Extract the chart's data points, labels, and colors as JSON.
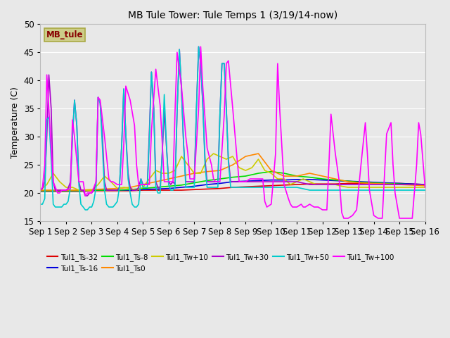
{
  "title": "MB Tule Tower: Tule Temps 1 (3/19/14-now)",
  "ylabel": "Temperature (C)",
  "ylim": [
    15,
    50
  ],
  "yticks": [
    15,
    20,
    25,
    30,
    35,
    40,
    45,
    50
  ],
  "xlim": [
    0,
    15
  ],
  "xtick_labels": [
    "Sep 1",
    "Sep 2",
    "Sep 3",
    "Sep 4",
    "Sep 5",
    "Sep 6",
    "Sep 7",
    "Sep 8",
    "Sep 9",
    "Sep 10",
    "Sep 11",
    "Sep 12",
    "Sep 13",
    "Sep 14",
    "Sep 15",
    "Sep 16"
  ],
  "xtick_positions": [
    0,
    1,
    2,
    3,
    4,
    5,
    6,
    7,
    8,
    9,
    10,
    11,
    12,
    13,
    14,
    15
  ],
  "background_color": "#e8e8e8",
  "plot_bg_color": "#e8e8e8",
  "grid_color": "#ffffff",
  "series_order": [
    "Tul1_Ts-32",
    "Tul1_Ts-16",
    "Tul1_Ts-8",
    "Tul1_Ts0",
    "Tul1_Tw+10",
    "Tul1_Tw+30",
    "Tul1_Tw+50",
    "Tul1_Tw+100"
  ],
  "series": {
    "Tul1_Ts-32": {
      "color": "#dd0000",
      "linewidth": 1.2,
      "data_x": [
        0,
        0.5,
        1,
        1.5,
        2,
        2.5,
        3,
        3.5,
        4,
        4.5,
        5,
        5.5,
        6,
        6.5,
        7,
        7.5,
        8,
        8.5,
        9,
        9.5,
        10,
        10.5,
        11,
        11.5,
        12,
        12.5,
        13,
        13.5,
        14,
        14.5,
        15
      ],
      "data_y": [
        20.3,
        20.3,
        20.3,
        20.3,
        20.4,
        20.4,
        20.4,
        20.4,
        20.5,
        20.5,
        20.5,
        20.5,
        20.6,
        20.7,
        20.8,
        21.0,
        21.1,
        21.2,
        21.3,
        21.4,
        21.5,
        21.6,
        21.6,
        21.6,
        21.7,
        21.7,
        21.7,
        21.7,
        21.7,
        21.6,
        21.5
      ]
    },
    "Tul1_Ts-16": {
      "color": "#0000dd",
      "linewidth": 1.2,
      "data_x": [
        0,
        0.5,
        1,
        1.5,
        2,
        2.5,
        3,
        3.5,
        4,
        4.5,
        5,
        5.5,
        6,
        6.5,
        7,
        7.5,
        8,
        8.5,
        9,
        9.5,
        10,
        10.5,
        11,
        11.5,
        12,
        12.5,
        13,
        13.5,
        14,
        14.5,
        15
      ],
      "data_y": [
        20.4,
        20.4,
        20.4,
        20.4,
        20.5,
        20.5,
        20.5,
        20.5,
        20.6,
        20.7,
        20.8,
        21.0,
        21.2,
        21.5,
        21.7,
        22.0,
        22.1,
        22.2,
        22.3,
        22.3,
        22.4,
        22.4,
        22.3,
        22.2,
        22.1,
        22.0,
        21.9,
        21.8,
        21.7,
        21.6,
        21.5
      ]
    },
    "Tul1_Ts-8": {
      "color": "#00dd00",
      "linewidth": 1.2,
      "data_x": [
        0,
        0.5,
        1,
        1.5,
        2,
        2.5,
        3,
        3.5,
        4,
        4.5,
        5,
        5.5,
        6,
        6.5,
        7,
        7.5,
        8,
        8.5,
        9,
        9.5,
        10,
        10.5,
        11,
        11.5,
        12,
        12.5,
        13,
        13.5,
        14,
        14.5,
        15
      ],
      "data_y": [
        20.4,
        20.4,
        20.4,
        20.4,
        20.5,
        20.5,
        20.5,
        20.6,
        20.8,
        21.0,
        21.2,
        21.4,
        21.8,
        22.2,
        22.5,
        22.8,
        23.0,
        23.5,
        23.8,
        23.5,
        23.0,
        22.8,
        22.5,
        22.3,
        22.1,
        21.9,
        21.8,
        21.7,
        21.6,
        21.5,
        21.4
      ]
    },
    "Tul1_Ts0": {
      "color": "#ff8800",
      "linewidth": 1.2,
      "data_x": [
        0,
        0.5,
        1,
        1.5,
        2,
        2.5,
        3,
        3.5,
        4,
        4.5,
        5,
        5.5,
        6,
        6.5,
        7,
        7.5,
        8,
        8.5,
        9,
        9.5,
        10,
        10.5,
        11,
        11.5,
        12,
        12.5,
        13,
        13.5,
        14,
        14.5,
        15
      ],
      "data_y": [
        20.5,
        20.5,
        20.5,
        20.5,
        20.6,
        20.7,
        20.8,
        21.0,
        21.5,
        22.0,
        22.5,
        23.0,
        23.5,
        23.8,
        24.0,
        25.0,
        26.5,
        27.0,
        24.0,
        23.0,
        23.0,
        23.5,
        23.0,
        22.5,
        22.0,
        21.8,
        21.7,
        21.6,
        21.5,
        21.4,
        21.3
      ]
    },
    "Tul1_Tw+10": {
      "color": "#cccc00",
      "linewidth": 1.2,
      "data_x": [
        0,
        0.25,
        0.5,
        0.75,
        1,
        1.25,
        1.5,
        1.75,
        2,
        2.25,
        2.5,
        2.75,
        3,
        3.25,
        3.5,
        3.75,
        4,
        4.25,
        4.5,
        4.75,
        5,
        5.25,
        5.5,
        5.75,
        6,
        6.25,
        6.5,
        6.75,
        7,
        7.25,
        7.5,
        7.75,
        8,
        8.25,
        8.5,
        8.75,
        9,
        9.25,
        9.5,
        9.75,
        10,
        10.25,
        10.5,
        10.75,
        11,
        11.25,
        11.5,
        11.75,
        12,
        12.25,
        12.5,
        12.75,
        13,
        13.25,
        13.5,
        13.75,
        14,
        14.25,
        14.5,
        14.75,
        15
      ],
      "data_y": [
        20.5,
        21.5,
        23.5,
        22.0,
        21.0,
        21.0,
        20.5,
        20.5,
        20.5,
        21.5,
        23.0,
        22.0,
        20.8,
        21.0,
        20.8,
        20.5,
        21.0,
        22.5,
        24.0,
        23.5,
        23.5,
        24.0,
        26.5,
        25.0,
        23.5,
        23.5,
        26.0,
        27.0,
        26.5,
        26.0,
        26.5,
        24.5,
        24.0,
        24.5,
        26.0,
        24.0,
        23.5,
        22.5,
        22.5,
        21.5,
        22.0,
        22.5,
        22.0,
        21.5,
        21.5,
        21.5,
        21.5,
        21.2,
        21.0,
        21.0,
        21.0,
        21.0,
        21.0,
        21.0,
        21.0,
        21.0,
        21.0,
        21.0,
        21.0,
        21.0,
        21.0
      ]
    },
    "Tul1_Tw+30": {
      "color": "#aa00cc",
      "linewidth": 1.2,
      "data_x": [
        0,
        0.08,
        0.17,
        0.25,
        0.33,
        0.42,
        0.5,
        0.58,
        0.67,
        0.75,
        0.83,
        0.92,
        1,
        1.08,
        1.17,
        1.25,
        1.33,
        1.42,
        1.5,
        1.58,
        1.67,
        1.75,
        1.83,
        1.92,
        2,
        2.08,
        2.17,
        2.25,
        2.33,
        2.42,
        2.5,
        2.58,
        2.67,
        2.75,
        2.83,
        2.92,
        3,
        3.08,
        3.17,
        3.25,
        3.33,
        3.42,
        3.5,
        3.58,
        3.67,
        3.75,
        3.83,
        3.92,
        4,
        4.08,
        4.17,
        4.25,
        4.33,
        4.42,
        4.5,
        4.58,
        4.67,
        4.75,
        4.83,
        4.92,
        5,
        5.08,
        5.17,
        5.25,
        5.33,
        5.42,
        5.5,
        5.58,
        5.67,
        5.75,
        5.83,
        5.92,
        6,
        6.08,
        6.17,
        6.25,
        6.33,
        6.42,
        6.5,
        6.58,
        6.67,
        6.75,
        6.83,
        6.92,
        7,
        7.08,
        7.17,
        7.25,
        7.33,
        7.42,
        7.5,
        7.58,
        7.67,
        7.75,
        7.83,
        7.92,
        8,
        8.08,
        8.17,
        8.25,
        8.33,
        8.42,
        8.5,
        8.58,
        8.67,
        8.75,
        8.83,
        8.92,
        9,
        9.08,
        9.17,
        9.25,
        9.33,
        9.42,
        9.5,
        9.58,
        9.67,
        9.75,
        9.83,
        9.92,
        10,
        10.5,
        11,
        11.5,
        12,
        12.5,
        13,
        13.5,
        14,
        14.5,
        15
      ],
      "data_y": [
        20.5,
        20.8,
        22.0,
        30.0,
        41.0,
        35.0,
        22.0,
        20.5,
        20.5,
        20.5,
        20.5,
        20.5,
        20.5,
        20.8,
        22.0,
        30.0,
        36.5,
        32.0,
        22.0,
        20.5,
        20.5,
        19.5,
        19.5,
        20.0,
        20.0,
        20.5,
        22.0,
        37.0,
        36.0,
        30.0,
        22.0,
        20.5,
        20.5,
        20.5,
        20.5,
        20.5,
        20.5,
        21.0,
        28.5,
        38.5,
        30.5,
        23.5,
        21.0,
        20.5,
        20.5,
        20.5,
        21.0,
        22.5,
        21.5,
        21.5,
        21.5,
        31.0,
        41.5,
        35.0,
        22.0,
        21.0,
        21.0,
        27.0,
        34.5,
        28.0,
        22.0,
        21.5,
        22.0,
        21.5,
        34.5,
        45.5,
        38.5,
        29.0,
        22.0,
        22.0,
        22.0,
        22.0,
        22.0,
        34.5,
        46.0,
        43.0,
        36.0,
        26.0,
        22.0,
        22.0,
        22.0,
        22.0,
        22.0,
        22.0,
        34.0,
        43.0,
        43.0,
        35.0,
        26.0,
        22.0,
        22.0,
        22.0,
        22.0,
        22.0,
        22.0,
        22.0,
        22.0,
        22.0,
        22.0,
        22.0,
        22.0,
        22.0,
        22.0,
        22.0,
        22.0,
        22.0,
        22.0,
        22.0,
        22.0,
        22.0,
        22.0,
        22.0,
        22.0,
        22.0,
        22.0,
        22.0,
        22.0,
        22.0,
        22.0,
        22.0,
        22.0,
        21.5,
        21.5,
        21.5,
        21.5,
        21.5,
        21.5,
        21.5,
        21.5,
        21.5,
        21.5
      ]
    },
    "Tul1_Tw+50": {
      "color": "#00cccc",
      "linewidth": 1.2,
      "data_x": [
        0,
        0.08,
        0.17,
        0.25,
        0.33,
        0.42,
        0.5,
        0.58,
        0.67,
        0.75,
        0.83,
        0.92,
        1,
        1.08,
        1.17,
        1.25,
        1.33,
        1.42,
        1.5,
        1.58,
        1.67,
        1.75,
        1.83,
        1.92,
        2,
        2.08,
        2.17,
        2.25,
        2.33,
        2.42,
        2.5,
        2.58,
        2.67,
        2.75,
        2.83,
        2.92,
        3,
        3.08,
        3.17,
        3.25,
        3.33,
        3.42,
        3.5,
        3.58,
        3.67,
        3.75,
        3.83,
        3.92,
        4,
        4.08,
        4.17,
        4.25,
        4.33,
        4.42,
        4.5,
        4.58,
        4.67,
        4.75,
        4.83,
        4.92,
        5,
        5.08,
        5.17,
        5.25,
        5.33,
        5.42,
        5.5,
        5.58,
        5.67,
        5.75,
        5.83,
        5.92,
        6,
        6.08,
        6.17,
        6.25,
        6.33,
        6.42,
        6.5,
        6.58,
        6.67,
        6.75,
        6.83,
        6.92,
        7,
        7.08,
        7.17,
        7.25,
        7.33,
        7.42,
        7.5,
        7.58,
        7.67,
        7.75,
        7.83,
        7.92,
        8,
        8.08,
        8.17,
        8.25,
        8.33,
        8.42,
        8.5,
        8.58,
        8.67,
        8.75,
        8.83,
        8.92,
        9,
        9.08,
        9.17,
        9.25,
        9.33,
        9.42,
        9.5,
        9.58,
        9.67,
        9.75,
        9.83,
        9.92,
        10,
        10.5,
        11,
        11.5,
        12,
        12.5,
        13,
        13.5,
        14,
        14.5,
        15
      ],
      "data_y": [
        18.0,
        18.0,
        19.0,
        33.0,
        33.5,
        26.0,
        18.0,
        17.5,
        17.5,
        17.5,
        17.5,
        18.0,
        18.0,
        18.5,
        21.0,
        30.0,
        36.5,
        32.0,
        21.5,
        18.0,
        17.5,
        17.0,
        17.0,
        17.5,
        17.5,
        18.5,
        21.0,
        37.0,
        36.0,
        28.0,
        20.5,
        18.0,
        17.5,
        17.5,
        17.5,
        18.0,
        18.5,
        21.0,
        28.5,
        38.5,
        30.5,
        22.5,
        20.0,
        18.0,
        17.5,
        17.5,
        18.0,
        22.5,
        21.0,
        21.0,
        21.0,
        30.0,
        41.5,
        35.0,
        21.0,
        20.0,
        20.0,
        27.0,
        37.5,
        28.0,
        21.5,
        20.5,
        20.5,
        21.0,
        34.5,
        45.5,
        38.5,
        29.0,
        21.0,
        21.0,
        21.0,
        21.0,
        21.0,
        34.5,
        46.0,
        43.0,
        36.0,
        25.0,
        21.0,
        21.0,
        21.0,
        21.0,
        21.0,
        21.0,
        34.0,
        43.0,
        43.0,
        35.0,
        25.5,
        21.0,
        21.0,
        21.0,
        21.0,
        21.0,
        21.0,
        21.0,
        21.0,
        21.0,
        21.0,
        21.0,
        21.0,
        21.0,
        21.0,
        21.0,
        21.0,
        21.0,
        21.0,
        21.0,
        21.0,
        21.0,
        21.0,
        21.0,
        21.0,
        21.0,
        21.0,
        21.0,
        21.0,
        21.0,
        21.0,
        21.0,
        21.0,
        20.5,
        20.5,
        20.5,
        20.5,
        20.5,
        20.5,
        20.5,
        20.5,
        20.5,
        20.5
      ]
    },
    "Tul1_Tw+100": {
      "color": "#ff00ff",
      "linewidth": 1.2,
      "data_x": [
        0,
        0.08,
        0.17,
        0.25,
        0.33,
        0.5,
        0.67,
        0.75,
        0.83,
        1.0,
        1.17,
        1.25,
        1.33,
        1.5,
        1.67,
        1.75,
        1.83,
        2.0,
        2.17,
        2.25,
        2.33,
        2.5,
        2.67,
        2.75,
        2.83,
        3.0,
        3.17,
        3.25,
        3.33,
        3.5,
        3.67,
        3.75,
        3.83,
        4.0,
        4.17,
        4.25,
        4.33,
        4.5,
        4.67,
        4.75,
        4.83,
        5.0,
        5.17,
        5.25,
        5.33,
        5.5,
        5.67,
        5.75,
        5.83,
        6.0,
        6.17,
        6.25,
        6.33,
        6.5,
        6.67,
        6.75,
        6.83,
        7.0,
        7.17,
        7.25,
        7.33,
        7.5,
        7.67,
        7.75,
        7.83,
        8.0,
        8.17,
        8.25,
        8.33,
        8.5,
        8.67,
        8.75,
        8.83,
        9.0,
        9.17,
        9.25,
        9.33,
        9.5,
        9.67,
        9.75,
        9.83,
        10.0,
        10.17,
        10.25,
        10.33,
        10.5,
        10.67,
        10.75,
        10.83,
        11.0,
        11.17,
        11.25,
        11.33,
        11.5,
        11.67,
        11.75,
        11.83,
        12.0,
        12.17,
        12.25,
        12.33,
        12.5,
        12.67,
        12.75,
        12.83,
        13.0,
        13.17,
        13.25,
        13.33,
        13.5,
        13.67,
        13.75,
        13.83,
        14.0,
        14.17,
        14.25,
        14.33,
        14.5,
        14.67,
        14.75,
        14.83,
        15.0
      ],
      "data_y": [
        20.5,
        21.0,
        25.0,
        41.0,
        35.0,
        22.0,
        20.0,
        20.0,
        20.5,
        20.5,
        20.8,
        33.0,
        30.0,
        22.0,
        22.0,
        19.5,
        20.0,
        20.0,
        22.0,
        37.0,
        36.5,
        30.0,
        22.5,
        22.0,
        22.0,
        21.5,
        21.5,
        28.5,
        39.0,
        36.5,
        32.0,
        25.0,
        21.5,
        21.5,
        21.5,
        21.5,
        31.0,
        42.0,
        35.5,
        29.0,
        22.0,
        22.0,
        22.0,
        34.5,
        45.0,
        39.0,
        30.0,
        27.0,
        22.5,
        22.5,
        35.0,
        46.0,
        39.0,
        28.0,
        25.0,
        22.5,
        22.0,
        22.0,
        34.0,
        43.0,
        43.5,
        35.0,
        26.0,
        22.0,
        22.0,
        22.0,
        22.5,
        22.5,
        22.5,
        22.5,
        22.5,
        18.5,
        17.5,
        18.0,
        27.0,
        43.0,
        35.0,
        21.5,
        19.0,
        18.0,
        17.5,
        17.5,
        18.0,
        17.5,
        17.5,
        18.0,
        17.5,
        17.5,
        17.5,
        17.0,
        17.0,
        25.0,
        34.0,
        27.0,
        21.5,
        16.5,
        15.5,
        15.5,
        16.0,
        16.5,
        17.0,
        25.0,
        32.5,
        27.0,
        20.5,
        16.0,
        15.5,
        15.5,
        15.5,
        30.5,
        32.5,
        25.0,
        20.0,
        15.5,
        15.5,
        15.5,
        15.5,
        15.5,
        25.0,
        32.5,
        30.5,
        21.0
      ]
    }
  },
  "legend_box_label": "MB_tule",
  "legend_box_facecolor": "#cccc88",
  "legend_box_edgecolor": "#aaaa44",
  "legend_box_text_color": "#880000"
}
